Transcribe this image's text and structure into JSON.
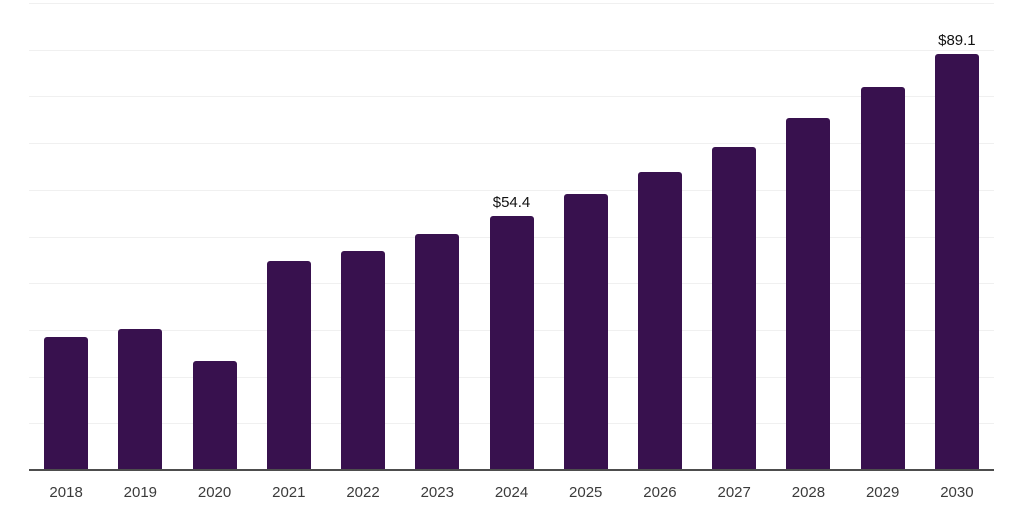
{
  "chart_data": {
    "type": "bar",
    "categories": [
      "2018",
      "2019",
      "2020",
      "2021",
      "2022",
      "2023",
      "2024",
      "2025",
      "2026",
      "2027",
      "2028",
      "2029",
      "2030"
    ],
    "values": [
      28.4,
      30.1,
      23.3,
      44.8,
      47.0,
      50.6,
      54.4,
      59.2,
      63.9,
      69.2,
      75.4,
      82.0,
      89.1
    ],
    "data_labels": [
      null,
      null,
      null,
      null,
      null,
      null,
      "$54.4",
      null,
      null,
      null,
      null,
      null,
      "$89.1"
    ],
    "ylim": [
      0,
      100
    ],
    "gridline_step": 10,
    "grid": "horizontal",
    "legend": "none",
    "colors": {
      "bar": "#38114E",
      "gridline": "#F0F0F0",
      "axis_line": "#4D4D4D",
      "tick_label": "#3B3B3B",
      "data_label": "#111111",
      "background": "#FFFFFF"
    }
  }
}
